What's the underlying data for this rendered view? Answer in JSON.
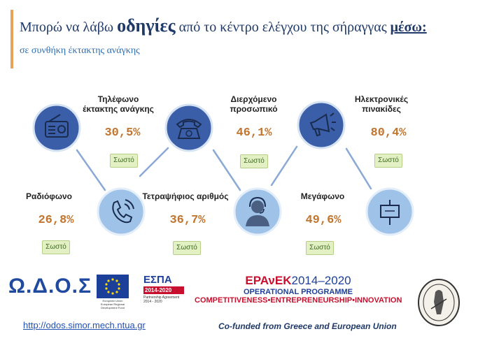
{
  "header": {
    "title_part1": "Μπορώ να λάβω ",
    "title_big": "οδηγίες",
    "title_part2": " από το κέντρο ελέγχου της σήραγγας ",
    "title_underlined": "μέσω:",
    "subtitle": "σε συνθήκη έκτακτης ανάγκης"
  },
  "items": [
    {
      "label": "Τηλέφωνο έκτακτης ανάγκης",
      "percent": "30,5%",
      "badge": "Σωστό",
      "icon": "telephone-icon"
    },
    {
      "label": "Διερχόμενο προσωπικό",
      "percent": "46,1%",
      "badge": "Σωστό",
      "icon": "headset-operator-icon"
    },
    {
      "label": "Ηλεκτρονικές πινακίδες",
      "percent": "80,4%",
      "badge": "Σωστό",
      "icon": "signboard-icon"
    },
    {
      "label": "Ραδιόφωνο",
      "percent": "26,8%",
      "badge": "Σωστό",
      "icon": "radio-icon"
    },
    {
      "label": "Τετραψήφιος αριθμός",
      "percent": "36,7%",
      "badge": "Σωστό",
      "icon": "phone-call-icon"
    },
    {
      "label": "Μεγάφωνο",
      "percent": "49,6%",
      "badge": "Σωστό",
      "icon": "megaphone-icon"
    }
  ],
  "colors": {
    "dark_circle": "#3a5ea8",
    "light_circle": "#9fc3e8",
    "percent": "#c1752f"
  },
  "footer": {
    "url": "http://odos.simor.mech.ntua.gr",
    "cofunded": "Co-funded from Greece and European Union",
    "logo_odos": "Ω.Δ.Ο.Σ",
    "espa_title": "ΕΣΠΑ",
    "espa_years": "2014-2020",
    "espa_caption": "Partnership Agreement 2014 - 2020",
    "eu_caption": "European Union European Regional Development Fund",
    "epanek_name": "ΕΡΑνΕΚ",
    "epanek_years": "2014–2020",
    "epanek_programme": "OPERATIONAL PROGRAMME",
    "epanek_slogan": "COMPETITIVENESS•ENTREPRENEURSHIP•INNOVATION"
  }
}
